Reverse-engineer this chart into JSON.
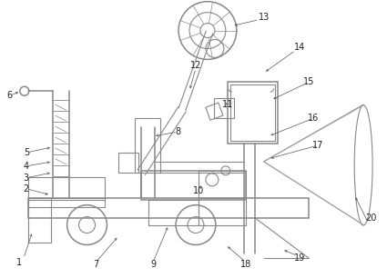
{
  "background_color": "#ffffff",
  "line_color": "#aaaaaa",
  "figsize": [
    4.25,
    3.06
  ],
  "dpi": 100,
  "label_fontsize": 7.0,
  "label_color": "#222222"
}
